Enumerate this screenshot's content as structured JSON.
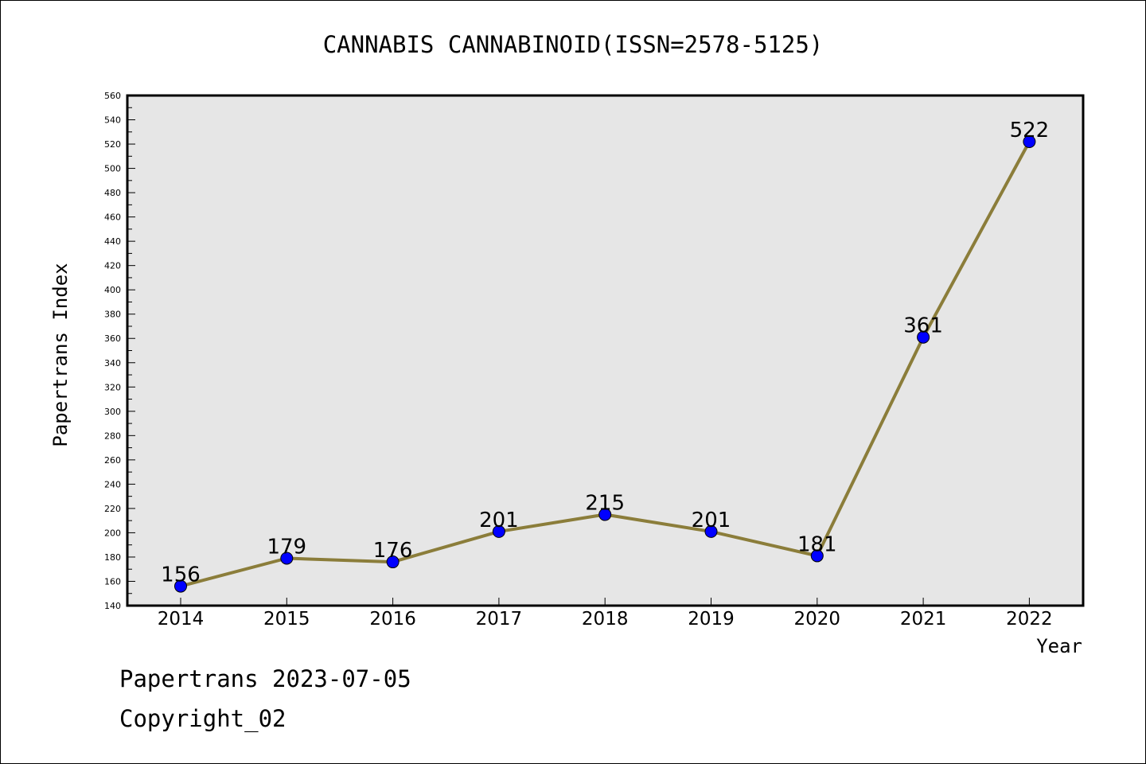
{
  "chart_data": {
    "type": "line",
    "title": "CANNABIS CANNABINOID(ISSN=2578-5125)",
    "xlabel": "Year",
    "ylabel": "Papertrans Index",
    "categories": [
      "2014",
      "2015",
      "2016",
      "2017",
      "2018",
      "2019",
      "2020",
      "2021",
      "2022"
    ],
    "series": [
      {
        "values": [
          156,
          179,
          176,
          201,
          215,
          201,
          181,
          361,
          522
        ]
      }
    ],
    "data_labels": [
      "156",
      "179",
      "176",
      "201",
      "215",
      "201",
      "181",
      "361",
      "522"
    ],
    "ylim": [
      140,
      560
    ],
    "yticks": [
      140,
      160,
      180,
      200,
      220,
      240,
      260,
      280,
      300,
      320,
      340,
      360,
      380,
      400,
      420,
      440,
      460,
      480,
      500,
      520,
      540,
      560
    ],
    "grid": false,
    "colors": {
      "line": "#8B7D3A",
      "marker": "#0000FF",
      "plot_background": "#E6E6E6"
    }
  },
  "footer": {
    "line1": "Papertrans 2023-07-05",
    "line2": "Copyright_02"
  }
}
